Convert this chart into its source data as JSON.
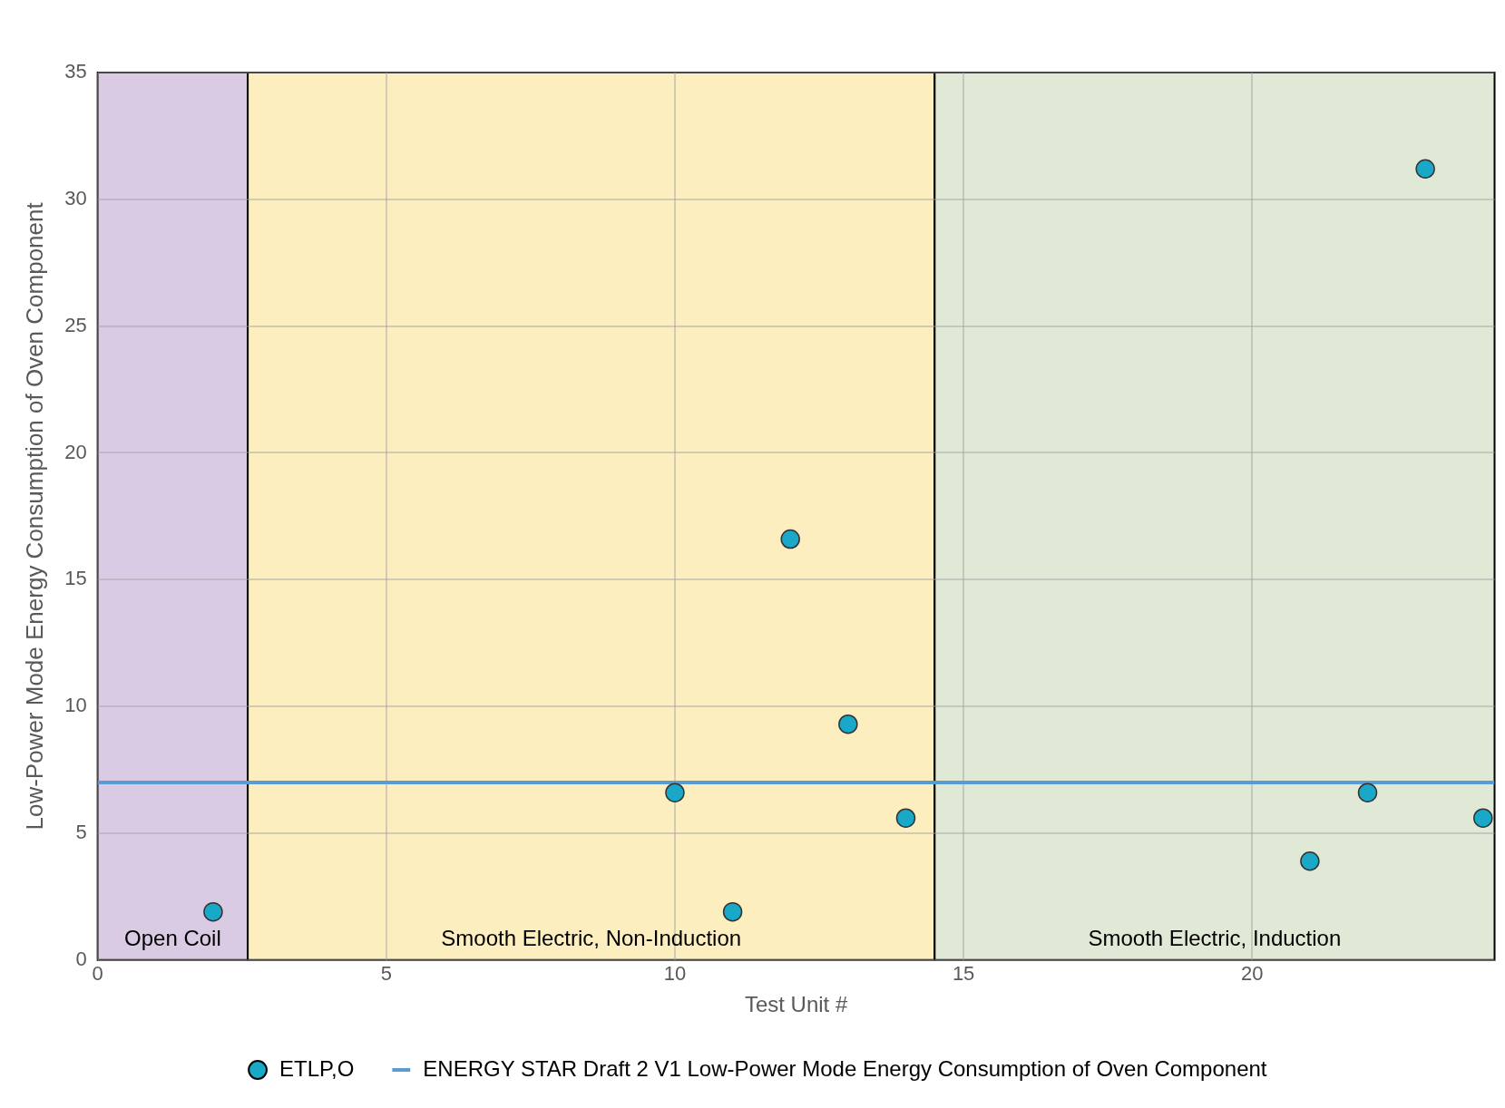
{
  "chart_data": {
    "type": "scatter",
    "xlabel": "Test Unit #",
    "ylabel": "Low-Power Mode Energy Consumption of Oven Component",
    "xlim": [
      0,
      24.2
    ],
    "xticks": [
      0,
      5,
      10,
      15,
      20
    ],
    "ylim": [
      0,
      35
    ],
    "yticks": [
      0,
      5,
      10,
      15,
      20,
      25,
      30,
      35
    ],
    "grid": true,
    "legend": "bottom",
    "marker": "circle",
    "series": [
      {
        "name": "ETLP,O",
        "color": "#1aa8c8",
        "x": [
          2,
          10,
          11,
          12,
          13,
          14,
          21,
          22,
          23,
          24
        ],
        "values": [
          1.9,
          6.6,
          1.9,
          16.6,
          9.3,
          5.6,
          3.9,
          6.6,
          31.2,
          5.6
        ]
      }
    ],
    "ref_lines": [
      {
        "axis": "y",
        "value": 7,
        "label": "ENERGY STAR Draft 2 V1 Low-Power Mode Energy Consumption of Oven Component",
        "color": "#5b9bd5",
        "line_style": "solid"
      }
    ],
    "bands": [
      {
        "axis": "x",
        "from": 0,
        "to": 2.6,
        "label": "Open Coil",
        "color": "#dacbe5"
      },
      {
        "axis": "x",
        "from": 2.6,
        "to": 14.5,
        "label": "Smooth Electric, Non-Induction",
        "color": "#fdeec0"
      },
      {
        "axis": "x",
        "from": 14.5,
        "to": 24.2,
        "label": "Smooth Electric, Induction",
        "color": "#dfe9d5"
      }
    ]
  }
}
